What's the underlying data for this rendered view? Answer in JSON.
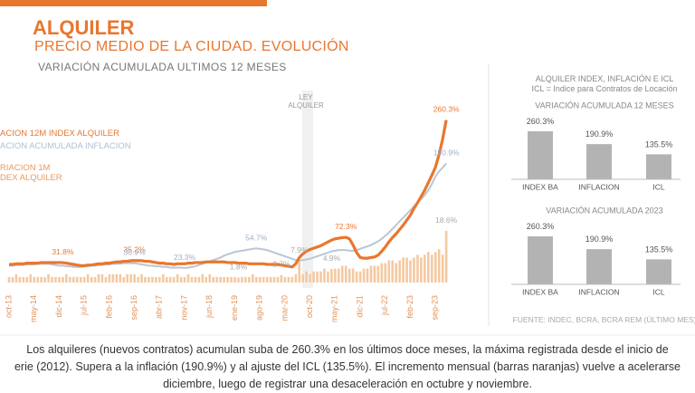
{
  "header": {
    "title": "ALQUILER",
    "subtitle": "PRECIO MEDIO DE LA CIUDAD. EVOLUCIÓN"
  },
  "annotation": "LEY\nALQUILER",
  "panel": {
    "title": "ALQUILER INDEX, INFLACIÓN E ICL",
    "note": "ICL = Indice para Contratos de Locación",
    "source": "FUENTE: INDEC, BCRA, BCRA REM (ÚLTIMO MES)"
  },
  "footer": {
    "lines": [
      "Los alquileres (nuevos contratos) acumulan suba de 260.3% en los últimos doce meses, la máxima registrada desde el inicio de",
      "erie (2012). Supera a la inflación (190.9%) y al ajuste del ICL (135.5%). El incremento mensual (barras naranjas) vuelve a acelerarse",
      "diciembre, luego de registrar una desaceleración en octubre y noviembre."
    ]
  },
  "chart_data": [
    {
      "type": "line",
      "title": "VARIACIÓN ACUMULADA ULTIMOS 12 MESES",
      "categories": [
        "oct-13",
        null,
        null,
        null,
        null,
        null,
        null,
        "may-14",
        null,
        null,
        null,
        null,
        null,
        null,
        "dic-14",
        null,
        null,
        null,
        null,
        null,
        null,
        "jul-15",
        null,
        null,
        null,
        null,
        null,
        null,
        "feb-16",
        null,
        null,
        null,
        null,
        null,
        null,
        "sep-16",
        null,
        null,
        null,
        null,
        null,
        null,
        "abr-17",
        null,
        null,
        null,
        null,
        null,
        null,
        "nov-17",
        null,
        null,
        null,
        null,
        null,
        null,
        "jun-18",
        null,
        null,
        null,
        null,
        null,
        null,
        "ene-19",
        null,
        null,
        null,
        null,
        null,
        null,
        "ago-19",
        null,
        null,
        null,
        null,
        null,
        null,
        "mar-20",
        null,
        null,
        null,
        null,
        null,
        null,
        "oct-20",
        null,
        null,
        null,
        null,
        null,
        null,
        "may-21",
        null,
        null,
        null,
        null,
        null,
        null,
        "dic-21",
        null,
        null,
        null,
        null,
        null,
        null,
        "jul-22",
        null,
        null,
        null,
        null,
        null,
        null,
        "feb-23",
        null,
        null,
        null,
        null,
        null,
        null,
        "sep-23",
        null,
        null,
        null
      ],
      "ylim": [
        0,
        280
      ],
      "y2lim": [
        0,
        63
      ],
      "series": [
        {
          "name": "ACION 12M INDEX ALQUILER",
          "type": "line",
          "color": "#e8772e",
          "values": [
            29,
            29,
            30,
            30,
            30,
            31,
            31,
            31,
            31,
            32,
            32,
            32,
            32,
            32,
            32,
            31.8,
            31,
            30,
            29,
            28,
            27,
            27,
            28,
            28,
            29,
            30,
            30,
            31,
            31,
            32,
            33,
            33,
            34,
            34,
            35,
            35.2,
            35,
            35,
            34,
            34,
            33,
            32,
            31,
            31,
            30,
            30,
            29,
            30,
            30,
            30,
            31,
            31,
            32,
            32,
            32,
            33,
            33,
            33,
            33,
            33,
            33,
            32,
            32,
            32,
            31,
            31,
            31,
            30,
            30,
            30,
            30,
            30,
            29,
            29,
            29,
            29,
            28,
            27,
            26,
            25,
            30,
            40,
            46,
            50,
            53,
            55,
            57,
            59,
            62,
            65,
            68,
            70,
            71,
            72,
            72.3,
            70,
            60,
            48,
            40,
            39,
            39,
            40,
            41,
            44,
            50,
            57,
            65,
            72,
            78,
            85,
            92,
            100,
            108,
            119,
            128,
            138,
            148,
            160,
            172,
            185,
            205,
            230,
            260.3
          ],
          "value_labels": [
            null,
            null,
            null,
            null,
            null,
            null,
            null,
            null,
            null,
            null,
            null,
            null,
            null,
            null,
            null,
            "31.8%",
            null,
            null,
            null,
            null,
            null,
            null,
            null,
            null,
            null,
            null,
            null,
            null,
            null,
            null,
            null,
            null,
            null,
            null,
            null,
            "35.2%",
            null,
            null,
            null,
            null,
            null,
            null,
            null,
            null,
            null,
            null,
            null,
            null,
            null,
            null,
            null,
            null,
            null,
            null,
            null,
            null,
            null,
            null,
            null,
            null,
            null,
            null,
            null,
            null,
            null,
            null,
            null,
            null,
            null,
            null,
            null,
            null,
            null,
            null,
            null,
            null,
            null,
            null,
            null,
            null,
            null,
            null,
            null,
            null,
            null,
            null,
            null,
            null,
            null,
            null,
            null,
            null,
            null,
            null,
            "72.3%",
            null,
            null,
            null,
            null,
            null,
            null,
            null,
            null,
            null,
            null,
            null,
            null,
            null,
            null,
            null,
            null,
            null,
            null,
            null,
            null,
            null,
            null,
            null,
            null,
            null,
            null,
            null,
            "260.3%"
          ]
        },
        {
          "name": "ACION ACUMULADA INFLACION",
          "type": "line",
          "color": "#b9c6d8",
          "values": [
            27,
            27,
            28,
            28,
            28,
            29,
            29,
            29,
            30,
            30,
            30,
            30,
            29,
            28,
            27,
            27,
            26,
            26,
            25,
            25,
            25,
            26,
            26,
            27,
            27,
            28,
            28,
            29,
            29,
            30,
            30,
            30,
            31,
            31,
            31,
            30.9,
            30,
            29,
            28,
            27,
            27,
            26,
            26,
            25,
            25,
            24,
            24,
            24,
            24,
            23.3,
            24,
            25,
            26,
            28,
            30,
            32,
            34,
            36,
            38,
            40,
            43,
            45,
            47,
            49,
            50,
            51,
            52,
            53,
            54,
            54.7,
            54,
            53,
            52,
            50,
            48,
            46,
            44,
            42,
            40,
            38,
            36,
            35,
            36,
            37,
            38,
            40,
            42,
            44,
            46,
            48,
            50,
            51,
            52,
            52,
            52,
            51,
            51,
            52,
            54,
            56,
            58,
            60,
            63,
            66,
            70,
            75,
            80,
            86,
            92,
            98,
            104,
            110,
            116,
            122,
            128,
            134,
            140,
            148,
            158,
            170,
            178,
            184,
            190.9
          ],
          "value_labels": [
            null,
            null,
            null,
            null,
            null,
            null,
            null,
            null,
            null,
            null,
            null,
            null,
            null,
            null,
            null,
            null,
            null,
            null,
            null,
            null,
            null,
            null,
            null,
            null,
            null,
            null,
            null,
            null,
            null,
            null,
            null,
            null,
            null,
            null,
            null,
            "30.9%",
            null,
            null,
            null,
            null,
            null,
            null,
            null,
            null,
            null,
            null,
            null,
            null,
            null,
            "23.3%",
            null,
            null,
            null,
            null,
            null,
            null,
            null,
            null,
            null,
            null,
            null,
            null,
            null,
            null,
            null,
            null,
            null,
            null,
            null,
            "54.7%",
            null,
            null,
            null,
            null,
            null,
            null,
            null,
            null,
            null,
            null,
            null,
            null,
            null,
            null,
            null,
            null,
            null,
            null,
            null,
            null,
            null,
            null,
            null,
            null,
            null,
            null,
            null,
            null,
            null,
            null,
            null,
            null,
            null,
            null,
            null,
            null,
            null,
            null,
            null,
            null,
            null,
            null,
            null,
            null,
            null,
            null,
            null,
            null,
            null,
            null,
            null,
            null,
            "190.9%"
          ]
        },
        {
          "name": "RIACION 1M\nDEX ALQUILER",
          "type": "bar",
          "axis": "y2",
          "color": "#f4c9a1",
          "values": [
            2,
            2,
            3,
            2,
            2,
            2,
            3,
            2,
            2,
            2,
            2,
            3,
            2,
            2,
            2,
            2,
            3,
            2,
            2,
            2,
            2,
            2,
            3,
            2,
            2,
            3,
            3,
            2,
            3,
            3,
            3,
            3,
            2,
            3,
            3,
            3,
            2,
            3,
            2,
            2,
            2,
            2,
            2,
            3,
            2,
            2,
            2,
            3,
            2,
            2,
            3,
            2,
            2,
            2,
            3,
            2,
            3,
            2,
            2,
            2,
            2,
            2,
            2,
            2,
            1.8,
            2,
            2,
            2,
            3,
            2,
            2,
            2,
            2,
            2,
            2,
            2,
            2.7,
            2,
            2,
            2,
            3,
            7.9,
            3,
            4,
            3,
            4,
            4,
            4,
            5,
            4,
            4.9,
            5,
            5,
            6,
            6,
            5,
            5,
            4,
            4,
            5,
            5,
            6,
            6,
            6,
            7,
            7,
            8,
            8,
            7,
            8,
            9,
            9,
            8,
            9,
            10,
            9,
            10,
            11,
            10,
            11,
            12,
            10,
            18.6
          ],
          "value_labels": [
            null,
            null,
            null,
            null,
            null,
            null,
            null,
            null,
            null,
            null,
            null,
            null,
            null,
            null,
            null,
            null,
            null,
            null,
            null,
            null,
            null,
            null,
            null,
            null,
            null,
            null,
            null,
            null,
            null,
            null,
            null,
            null,
            null,
            null,
            null,
            null,
            null,
            null,
            null,
            null,
            null,
            null,
            null,
            null,
            null,
            null,
            null,
            null,
            null,
            null,
            null,
            null,
            null,
            null,
            null,
            null,
            null,
            null,
            null,
            null,
            null,
            null,
            null,
            null,
            "1.8%",
            null,
            null,
            null,
            null,
            null,
            null,
            null,
            null,
            null,
            null,
            null,
            "2.7%",
            null,
            null,
            null,
            null,
            "7.9%",
            null,
            null,
            null,
            null,
            null,
            null,
            null,
            null,
            "4.9%",
            null,
            null,
            null,
            null,
            null,
            null,
            null,
            null,
            null,
            null,
            null,
            null,
            null,
            null,
            null,
            null,
            null,
            null,
            null,
            null,
            null,
            null,
            null,
            null,
            null,
            null,
            null,
            null,
            null,
            null,
            null,
            "18.6%"
          ]
        }
      ]
    },
    {
      "type": "bar",
      "title": "VARIACIÓN ACUMULADA 12 MESES",
      "categories": [
        "INDEX BA",
        "INFLACION",
        "ICL"
      ],
      "values": [
        260.3,
        190.9,
        135.5
      ],
      "value_labels": [
        "260.3%",
        "190.9%",
        "135.5%"
      ],
      "color": "#b3b3b3",
      "ylim": [
        0,
        280
      ]
    },
    {
      "type": "bar",
      "title": "VARIACIÓN ACUMULADA 2023",
      "categories": [
        "INDEX BA",
        "INFLACION",
        "ICL"
      ],
      "values": [
        260.3,
        190.9,
        135.5
      ],
      "value_labels": [
        "260.3%",
        "190.9%",
        "135.5%"
      ],
      "color": "#b3b3b3",
      "ylim": [
        0,
        280
      ]
    }
  ]
}
